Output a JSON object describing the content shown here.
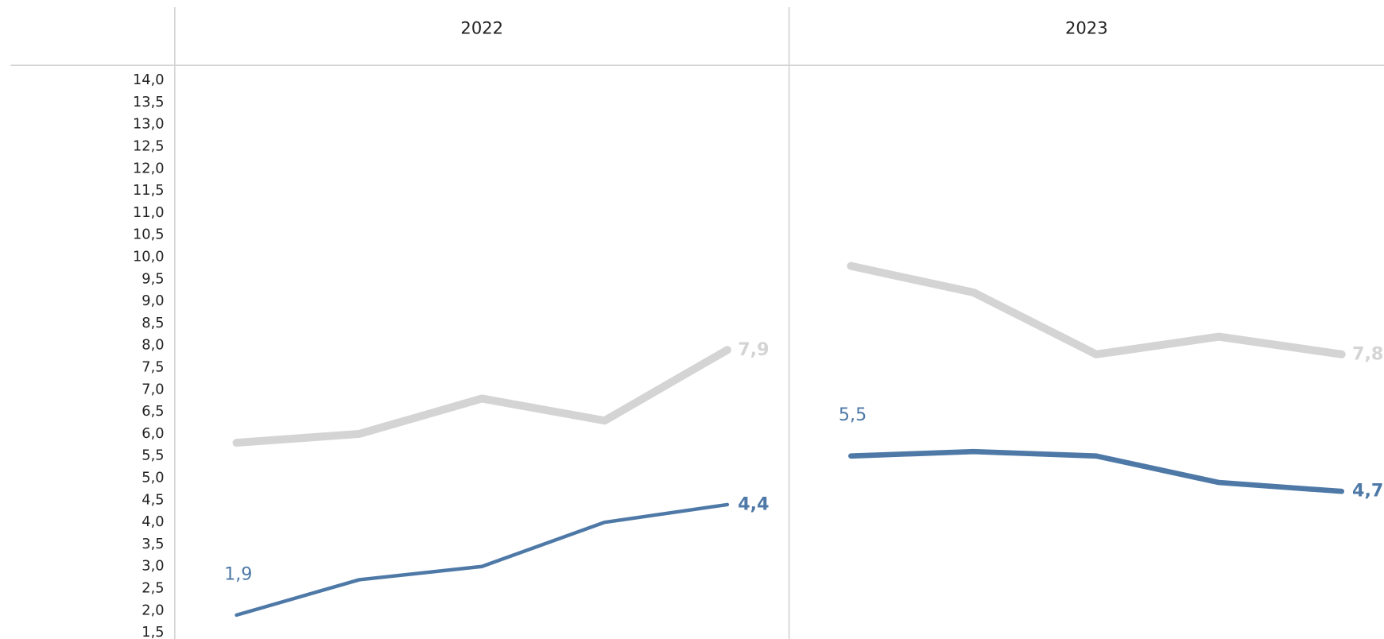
{
  "chart_data": {
    "type": "line",
    "ylim": [
      1.36,
      14.34
    ],
    "yticks": [
      {
        "value": 1.5,
        "label": "1,5"
      },
      {
        "value": 2.0,
        "label": "2,0"
      },
      {
        "value": 2.5,
        "label": "2,5"
      },
      {
        "value": 3.0,
        "label": "3,0"
      },
      {
        "value": 3.5,
        "label": "3,5"
      },
      {
        "value": 4.0,
        "label": "4,0"
      },
      {
        "value": 4.5,
        "label": "4,5"
      },
      {
        "value": 5.0,
        "label": "5,0"
      },
      {
        "value": 5.5,
        "label": "5,5"
      },
      {
        "value": 6.0,
        "label": "6,0"
      },
      {
        "value": 6.5,
        "label": "6,5"
      },
      {
        "value": 7.0,
        "label": "7,0"
      },
      {
        "value": 7.5,
        "label": "7,5"
      },
      {
        "value": 8.0,
        "label": "8,0"
      },
      {
        "value": 8.5,
        "label": "8,5"
      },
      {
        "value": 9.0,
        "label": "9,0"
      },
      {
        "value": 9.5,
        "label": "9,5"
      },
      {
        "value": 10.0,
        "label": "10,0"
      },
      {
        "value": 10.5,
        "label": "10,5"
      },
      {
        "value": 11.0,
        "label": "11,0"
      },
      {
        "value": 11.5,
        "label": "11,5"
      },
      {
        "value": 12.0,
        "label": "12,0"
      },
      {
        "value": 12.5,
        "label": "12,5"
      },
      {
        "value": 13.0,
        "label": "13,0"
      },
      {
        "value": 13.5,
        "label": "13,5"
      },
      {
        "value": 14.0,
        "label": "14,0"
      }
    ],
    "panels": [
      {
        "title": "2022",
        "series": [
          {
            "color": "#d4d4d4",
            "width": 9,
            "values": [
              5.8,
              6.0,
              6.8,
              6.3,
              7.9
            ],
            "value_labels": [
              null,
              null,
              null,
              null,
              "7,9"
            ]
          },
          {
            "color": "#4e79a7",
            "width": 4,
            "values": [
              1.9,
              2.7,
              3.0,
              4.0,
              4.4
            ],
            "value_labels": [
              "1,9",
              null,
              null,
              null,
              "4,4"
            ]
          }
        ]
      },
      {
        "title": "2023",
        "series": [
          {
            "color": "#d4d4d4",
            "width": 9,
            "values": [
              9.8,
              9.2,
              7.8,
              8.2,
              7.8
            ],
            "value_labels": [
              null,
              null,
              null,
              null,
              "7,8"
            ]
          },
          {
            "color": "#4e79a7",
            "width": 6,
            "values": [
              5.5,
              5.6,
              5.5,
              4.9,
              4.7
            ],
            "value_labels": [
              "5,5",
              null,
              null,
              null,
              "4,7"
            ]
          }
        ]
      }
    ]
  }
}
